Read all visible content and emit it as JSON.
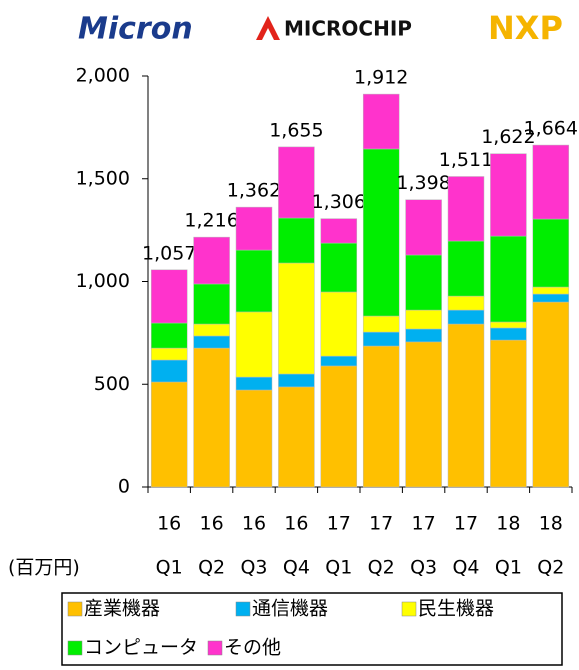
{
  "logos": [
    "Micron",
    "MICROCHIP",
    "NXP"
  ],
  "chart_data": {
    "type": "stacked_bar",
    "unit_label": "(百万円)",
    "categories": [
      [
        "16",
        "Q1"
      ],
      [
        "16",
        "Q2"
      ],
      [
        "16",
        "Q3"
      ],
      [
        "16",
        "Q4"
      ],
      [
        "17",
        "Q1"
      ],
      [
        "17",
        "Q2"
      ],
      [
        "17",
        "Q3"
      ],
      [
        "17",
        "Q4"
      ],
      [
        "18",
        "Q1"
      ],
      [
        "18",
        "Q2"
      ]
    ],
    "ylim": [
      0,
      2000
    ],
    "yticks": [
      0,
      500,
      {
        "value": 1000,
        "label": "1,000"
      },
      {
        "value": 1500,
        "label": "1,500"
      },
      {
        "value": 2000,
        "label": "2,000"
      }
    ],
    "series": [
      {
        "name": "産業機器",
        "color": "#ffc000",
        "values": [
          511,
          676,
          472,
          487,
          589,
          686,
          706,
          793,
          715,
          900
        ]
      },
      {
        "name": "通信機器",
        "color": "#00b0f0",
        "values": [
          107,
          59,
          63,
          63,
          48,
          68,
          63,
          68,
          59,
          39
        ]
      },
      {
        "name": "民生機器",
        "color": "#ffff00",
        "values": [
          58,
          58,
          317,
          540,
          312,
          78,
          92,
          68,
          29,
          34
        ]
      },
      {
        "name": "コンピュータ",
        "color": "#00ee00",
        "values": [
          122,
          195,
          301,
          219,
          238,
          813,
          268,
          268,
          418,
          331
        ]
      },
      {
        "name": "その他",
        "color": "#ff33cc",
        "values": [
          259,
          228,
          209,
          346,
          119,
          267,
          269,
          314,
          401,
          360
        ]
      }
    ],
    "totals": [
      1057,
      1216,
      1362,
      1655,
      1306,
      1912,
      1398,
      1511,
      1622,
      1664
    ],
    "total_labels": [
      "1,057",
      "1,216",
      "1,362",
      "1,655",
      "1,306",
      "1,912",
      "1,398",
      "1,511",
      "1,622",
      "1,664"
    ]
  }
}
